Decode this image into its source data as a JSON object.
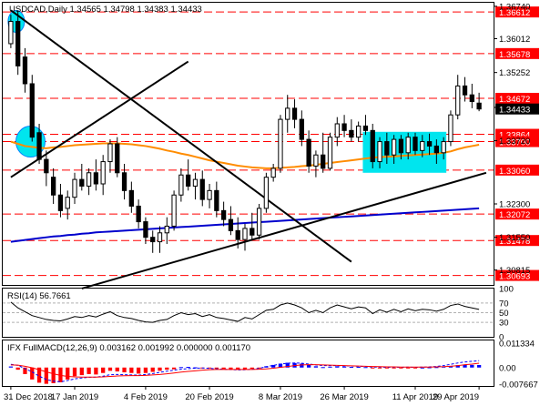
{
  "chart_data": [
    {
      "type": "candlestick",
      "title": "USDCAD,Daily 1.34565 1.34798 1.34383 1.34433",
      "symbol": "USDCAD",
      "timeframe": "Daily",
      "ohlc_header": {
        "open": 1.34565,
        "high": 1.34798,
        "low": 1.34383,
        "close": 1.34433
      },
      "ylim": [
        1.3048,
        1.3682
      ],
      "y_ticks": [
        "1.36740",
        "1.36012",
        "1.35252",
        "1.34468",
        "1.33720",
        "1.32300",
        "1.31550",
        "1.30815"
      ],
      "x_ticks": [
        "31 Dec 2018",
        "17 Jan 2019",
        "4 Feb 2019",
        "20 Feb 2019",
        "8 Mar 2019",
        "26 Mar 2019",
        "11 Apr 2019",
        "29 Apr 2019"
      ],
      "horizontal_levels": [
        {
          "value": 1.36612,
          "label": "1.36612",
          "style": "red-dashed"
        },
        {
          "value": 1.35678,
          "label": "1.35678",
          "style": "red-dashed"
        },
        {
          "value": 1.34672,
          "label": "1.34672",
          "style": "red-dashed"
        },
        {
          "value": 1.33864,
          "label": "1.33864",
          "style": "red-dashed"
        },
        {
          "value": 1.337,
          "label": "1.33700",
          "style": "red-dashed"
        },
        {
          "value": 1.3306,
          "label": "1.33060",
          "style": "red-dashed"
        },
        {
          "value": 1.32072,
          "label": "1.32072",
          "style": "red-dashed"
        },
        {
          "value": 1.31478,
          "label": "1.31478",
          "style": "red-dashed"
        },
        {
          "value": 1.30693,
          "label": "1.30693",
          "style": "red-dashed"
        }
      ],
      "current_price_label": "1.34433",
      "candles": [
        {
          "o": 1.359,
          "h": 1.3655,
          "l": 1.358,
          "c": 1.364
        },
        {
          "o": 1.364,
          "h": 1.3665,
          "l": 1.352,
          "c": 1.354
        },
        {
          "o": 1.356,
          "h": 1.358,
          "l": 1.348,
          "c": 1.35
        },
        {
          "o": 1.35,
          "h": 1.352,
          "l": 1.337,
          "c": 1.338
        },
        {
          "o": 1.339,
          "h": 1.341,
          "l": 1.332,
          "c": 1.333
        },
        {
          "o": 1.333,
          "h": 1.335,
          "l": 1.327,
          "c": 1.33
        },
        {
          "o": 1.329,
          "h": 1.331,
          "l": 1.323,
          "c": 1.325
        },
        {
          "o": 1.325,
          "h": 1.3275,
          "l": 1.32,
          "c": 1.3215
        },
        {
          "o": 1.322,
          "h": 1.326,
          "l": 1.3195,
          "c": 1.3245
        },
        {
          "o": 1.3245,
          "h": 1.33,
          "l": 1.323,
          "c": 1.3285
        },
        {
          "o": 1.3285,
          "h": 1.332,
          "l": 1.326,
          "c": 1.327
        },
        {
          "o": 1.327,
          "h": 1.331,
          "l": 1.325,
          "c": 1.33
        },
        {
          "o": 1.33,
          "h": 1.333,
          "l": 1.326,
          "c": 1.3275
        },
        {
          "o": 1.3275,
          "h": 1.334,
          "l": 1.325,
          "c": 1.3325
        },
        {
          "o": 1.3325,
          "h": 1.3375,
          "l": 1.33,
          "c": 1.3365
        },
        {
          "o": 1.3365,
          "h": 1.338,
          "l": 1.329,
          "c": 1.33
        },
        {
          "o": 1.33,
          "h": 1.332,
          "l": 1.324,
          "c": 1.326
        },
        {
          "o": 1.326,
          "h": 1.328,
          "l": 1.321,
          "c": 1.3225
        },
        {
          "o": 1.3225,
          "h": 1.324,
          "l": 1.3175,
          "c": 1.319
        },
        {
          "o": 1.319,
          "h": 1.32,
          "l": 1.314,
          "c": 1.3155
        },
        {
          "o": 1.3155,
          "h": 1.317,
          "l": 1.312,
          "c": 1.3145
        },
        {
          "o": 1.3145,
          "h": 1.318,
          "l": 1.312,
          "c": 1.3165
        },
        {
          "o": 1.3165,
          "h": 1.32,
          "l": 1.314,
          "c": 1.318
        },
        {
          "o": 1.318,
          "h": 1.326,
          "l": 1.317,
          "c": 1.325
        },
        {
          "o": 1.325,
          "h": 1.331,
          "l": 1.3235,
          "c": 1.3295
        },
        {
          "o": 1.3295,
          "h": 1.333,
          "l": 1.326,
          "c": 1.327
        },
        {
          "o": 1.327,
          "h": 1.33,
          "l": 1.324,
          "c": 1.3285
        },
        {
          "o": 1.3285,
          "h": 1.3305,
          "l": 1.3225,
          "c": 1.324
        },
        {
          "o": 1.324,
          "h": 1.3275,
          "l": 1.322,
          "c": 1.326
        },
        {
          "o": 1.326,
          "h": 1.328,
          "l": 1.32,
          "c": 1.3215
        },
        {
          "o": 1.3215,
          "h": 1.3235,
          "l": 1.318,
          "c": 1.3195
        },
        {
          "o": 1.3195,
          "h": 1.3225,
          "l": 1.316,
          "c": 1.317
        },
        {
          "o": 1.317,
          "h": 1.32,
          "l": 1.313,
          "c": 1.315
        },
        {
          "o": 1.315,
          "h": 1.3185,
          "l": 1.3125,
          "c": 1.3175
        },
        {
          "o": 1.3175,
          "h": 1.321,
          "l": 1.315,
          "c": 1.316
        },
        {
          "o": 1.316,
          "h": 1.323,
          "l": 1.315,
          "c": 1.322
        },
        {
          "o": 1.322,
          "h": 1.33,
          "l": 1.321,
          "c": 1.329
        },
        {
          "o": 1.329,
          "h": 1.332,
          "l": 1.328,
          "c": 1.331
        },
        {
          "o": 1.331,
          "h": 1.343,
          "l": 1.33,
          "c": 1.342
        },
        {
          "o": 1.342,
          "h": 1.3475,
          "l": 1.339,
          "c": 1.3445
        },
        {
          "o": 1.3445,
          "h": 1.3465,
          "l": 1.34,
          "c": 1.342
        },
        {
          "o": 1.342,
          "h": 1.344,
          "l": 1.336,
          "c": 1.3375
        },
        {
          "o": 1.3375,
          "h": 1.3395,
          "l": 1.33,
          "c": 1.3315
        },
        {
          "o": 1.3315,
          "h": 1.335,
          "l": 1.329,
          "c": 1.334
        },
        {
          "o": 1.334,
          "h": 1.339,
          "l": 1.33,
          "c": 1.331
        },
        {
          "o": 1.331,
          "h": 1.339,
          "l": 1.3305,
          "c": 1.338
        },
        {
          "o": 1.338,
          "h": 1.3425,
          "l": 1.336,
          "c": 1.341
        },
        {
          "o": 1.341,
          "h": 1.343,
          "l": 1.338,
          "c": 1.3395
        },
        {
          "o": 1.3395,
          "h": 1.342,
          "l": 1.337,
          "c": 1.338
        },
        {
          "o": 1.338,
          "h": 1.3415,
          "l": 1.337,
          "c": 1.3405
        },
        {
          "o": 1.3405,
          "h": 1.343,
          "l": 1.3385,
          "c": 1.3395
        },
        {
          "o": 1.3395,
          "h": 1.341,
          "l": 1.331,
          "c": 1.3325
        },
        {
          "o": 1.3325,
          "h": 1.338,
          "l": 1.331,
          "c": 1.337
        },
        {
          "o": 1.337,
          "h": 1.339,
          "l": 1.332,
          "c": 1.334
        },
        {
          "o": 1.334,
          "h": 1.3385,
          "l": 1.332,
          "c": 1.3375
        },
        {
          "o": 1.3375,
          "h": 1.3385,
          "l": 1.333,
          "c": 1.3345
        },
        {
          "o": 1.3345,
          "h": 1.339,
          "l": 1.333,
          "c": 1.338
        },
        {
          "o": 1.338,
          "h": 1.339,
          "l": 1.334,
          "c": 1.335
        },
        {
          "o": 1.335,
          "h": 1.3385,
          "l": 1.3335,
          "c": 1.337
        },
        {
          "o": 1.337,
          "h": 1.3388,
          "l": 1.334,
          "c": 1.336
        },
        {
          "o": 1.336,
          "h": 1.3375,
          "l": 1.332,
          "c": 1.3345
        },
        {
          "o": 1.3345,
          "h": 1.338,
          "l": 1.333,
          "c": 1.337
        },
        {
          "o": 1.337,
          "h": 1.344,
          "l": 1.336,
          "c": 1.343
        },
        {
          "o": 1.343,
          "h": 1.352,
          "l": 1.342,
          "c": 1.3495
        },
        {
          "o": 1.3495,
          "h": 1.3515,
          "l": 1.346,
          "c": 1.3475
        },
        {
          "o": 1.3475,
          "h": 1.35,
          "l": 1.3445,
          "c": 1.346
        },
        {
          "o": 1.34565,
          "h": 1.34798,
          "l": 1.34383,
          "c": 1.34433
        }
      ],
      "overlays": {
        "ma_orange": [
          1.337,
          1.3365,
          1.336,
          1.3358,
          1.3356,
          1.3355,
          1.3357,
          1.3358,
          1.336,
          1.3362,
          1.3363,
          1.3364,
          1.3365,
          1.3366,
          1.3366,
          1.3366,
          1.3365,
          1.3364,
          1.3362,
          1.336,
          1.3357,
          1.3354,
          1.335,
          1.3347,
          1.3343,
          1.334,
          1.3336,
          1.3332,
          1.3328,
          1.3325,
          1.3322,
          1.3319,
          1.3316,
          1.3314,
          1.3312,
          1.3311,
          1.331,
          1.331,
          1.3311,
          1.3312,
          1.3313,
          1.3315,
          1.3316,
          1.3318,
          1.332,
          1.3322,
          1.3324,
          1.3326,
          1.3328,
          1.333,
          1.3332,
          1.3334,
          1.3335,
          1.3336,
          1.3337,
          1.3338,
          1.3339,
          1.334,
          1.3341,
          1.3342,
          1.3343,
          1.3345,
          1.3348,
          1.3353,
          1.3357,
          1.336,
          1.3363
        ],
        "ma_blue": [
          1.3145,
          1.3147,
          1.3149,
          1.3151,
          1.3153,
          1.3155,
          1.3157,
          1.3158,
          1.316,
          1.3161,
          1.3163,
          1.3164,
          1.3166,
          1.3167,
          1.3168,
          1.3169,
          1.317,
          1.3171,
          1.3172,
          1.3173,
          1.3174,
          1.3175,
          1.3176,
          1.3177,
          1.3178,
          1.3179,
          1.318,
          1.3181,
          1.3182,
          1.3183,
          1.3184,
          1.3185,
          1.3186,
          1.3187,
          1.3188,
          1.3189,
          1.319,
          1.3191,
          1.3192,
          1.3193,
          1.3194,
          1.3195,
          1.3196,
          1.3197,
          1.3198,
          1.3199,
          1.32,
          1.3201,
          1.3202,
          1.3203,
          1.3204,
          1.3205,
          1.3206,
          1.3207,
          1.3208,
          1.3209,
          1.321,
          1.3211,
          1.3212,
          1.3213,
          1.3214,
          1.3215,
          1.3216,
          1.3217,
          1.3218,
          1.3219,
          1.322
        ],
        "trendlines": [
          {
            "from": [
              0,
              1.3665
            ],
            "to": [
              48,
              1.31
            ],
            "color": "#000000"
          },
          {
            "from": [
              0,
              1.329
            ],
            "to": [
              25,
              1.355
            ],
            "color": "#000000"
          },
          {
            "from": [
              10,
              1.304
            ],
            "to": [
              67,
              1.33
            ],
            "color": "#000000"
          }
        ],
        "highlight_box": {
          "from_index": 50,
          "to_index": 61,
          "top": 1.3392,
          "bottom": 1.33,
          "color": "#00e5ee"
        },
        "highlight_circles": [
          {
            "index": 0,
            "value": 1.364,
            "color": "#00e5ee"
          },
          {
            "index": 2,
            "value": 1.337,
            "color": "#00e5ee"
          }
        ]
      }
    },
    {
      "type": "line",
      "title": "RSI(14) 56.7661",
      "ylim": [
        0,
        100
      ],
      "y_ticks": [
        "100",
        "70",
        "50",
        "30",
        "0"
      ],
      "levels": [
        70,
        50,
        30
      ],
      "values": [
        72,
        60,
        52,
        44,
        40,
        36,
        34,
        33,
        37,
        42,
        40,
        44,
        41,
        47,
        52,
        44,
        40,
        38,
        34,
        31,
        30,
        34,
        36,
        44,
        50,
        46,
        48,
        42,
        46,
        40,
        38,
        35,
        32,
        40,
        37,
        46,
        55,
        57,
        66,
        70,
        66,
        60,
        50,
        55,
        50,
        60,
        66,
        62,
        58,
        62,
        60,
        48,
        56,
        51,
        57,
        52,
        58,
        54,
        57,
        56,
        53,
        57,
        65,
        68,
        63,
        60,
        56.7661
      ]
    },
    {
      "type": "bar",
      "title": "IFX FullMACD(12,26,9) 0.003162 0.001992 0.000000 0.001170",
      "ylim": [
        -0.0085,
        0.0125
      ],
      "y_ticks": [
        "0.011334",
        "0.00",
        "-0.007667"
      ],
      "histogram": [
        0.0005,
        -0.001,
        -0.003,
        -0.0055,
        -0.007,
        -0.0075,
        -0.0072,
        -0.0068,
        -0.0055,
        -0.004,
        -0.0035,
        -0.003,
        -0.0032,
        -0.0025,
        -0.0015,
        -0.0018,
        -0.0022,
        -0.0025,
        -0.0028,
        -0.0025,
        -0.002,
        -0.0015,
        -0.001,
        -0.0008,
        0.0002,
        0.0003,
        0.0001,
        -0.0002,
        -0.0004,
        -0.0006,
        -0.0007,
        -0.0008,
        -0.001,
        -0.0008,
        -0.0006,
        -0.0003,
        0.0006,
        0.0012,
        0.0018,
        0.0022,
        0.0021,
        0.0018,
        0.0012,
        0.0006,
        0.0002,
        0.0004,
        0.0006,
        0.0005,
        0.0003,
        0.0003,
        0.0002,
        -0.0004,
        -0.0002,
        -0.0003,
        -0.0001,
        -0.0003,
        -0.0001,
        -0.0002,
        0.0,
        0.0001,
        0.0002,
        0.0004,
        0.0008,
        0.0011,
        0.0013,
        0.0012,
        0.00117
      ],
      "macd_line": [
        0.0015,
        0.001,
        -0.0005,
        -0.002,
        -0.004,
        -0.0055,
        -0.0063,
        -0.0066,
        -0.006,
        -0.0052,
        -0.0048,
        -0.0045,
        -0.0044,
        -0.004,
        -0.0033,
        -0.0032,
        -0.0033,
        -0.0034,
        -0.0035,
        -0.0032,
        -0.0028,
        -0.0022,
        -0.0017,
        -0.0012,
        -0.0008,
        -0.0005,
        -0.0003,
        -0.0002,
        -0.0004,
        -0.0006,
        -0.0008,
        -0.0009,
        -0.0011,
        -0.001,
        -0.0008,
        -0.0004,
        0.0004,
        0.001,
        0.0016,
        0.002,
        0.0021,
        0.002,
        0.0016,
        0.0012,
        0.0009,
        0.0009,
        0.0009,
        0.0008,
        0.0007,
        0.0006,
        0.0005,
        0.0002,
        0.0002,
        0.0001,
        0.0002,
        0.0001,
        0.0002,
        0.0001,
        0.0002,
        0.0003,
        0.0005,
        0.0009,
        0.0015,
        0.0021,
        0.0026,
        0.0029,
        0.003162
      ],
      "signal_line": [
        0.0012,
        0.0011,
        0.0006,
        -0.0001,
        -0.001,
        -0.002,
        -0.0029,
        -0.0036,
        -0.0041,
        -0.0043,
        -0.0044,
        -0.0044,
        -0.0044,
        -0.0043,
        -0.0041,
        -0.0039,
        -0.0038,
        -0.0037,
        -0.0037,
        -0.0036,
        -0.0034,
        -0.0032,
        -0.0029,
        -0.0025,
        -0.0021,
        -0.0018,
        -0.0015,
        -0.0012,
        -0.001,
        -0.0009,
        -0.0009,
        -0.0009,
        -0.0009,
        -0.0009,
        -0.0009,
        -0.0008,
        -0.0006,
        -0.0003,
        0.0001,
        0.0005,
        0.0009,
        0.0012,
        0.0013,
        0.0013,
        0.0012,
        0.0011,
        0.001,
        0.0009,
        0.0008,
        0.0007,
        0.0006,
        0.0005,
        0.0004,
        0.0003,
        0.0003,
        0.0002,
        0.0002,
        0.0002,
        0.0002,
        0.0002,
        0.0003,
        0.0004,
        0.0006,
        0.0009,
        0.0013,
        0.0016,
        0.001992
      ],
      "colors": {
        "positive": "#0000ff",
        "negative": "#ff0000",
        "macd": "#0000ff",
        "signal": "#ff0000"
      }
    }
  ],
  "colors": {
    "background": "#ffffff",
    "axis": "#000000",
    "level_line": "#ff0000",
    "price_tag_bg": "#ff0000",
    "current_tag_bg": "#000000",
    "ma_orange": "#ff8c00",
    "ma_blue": "#0000cd",
    "highlight": "#00e5ee"
  }
}
